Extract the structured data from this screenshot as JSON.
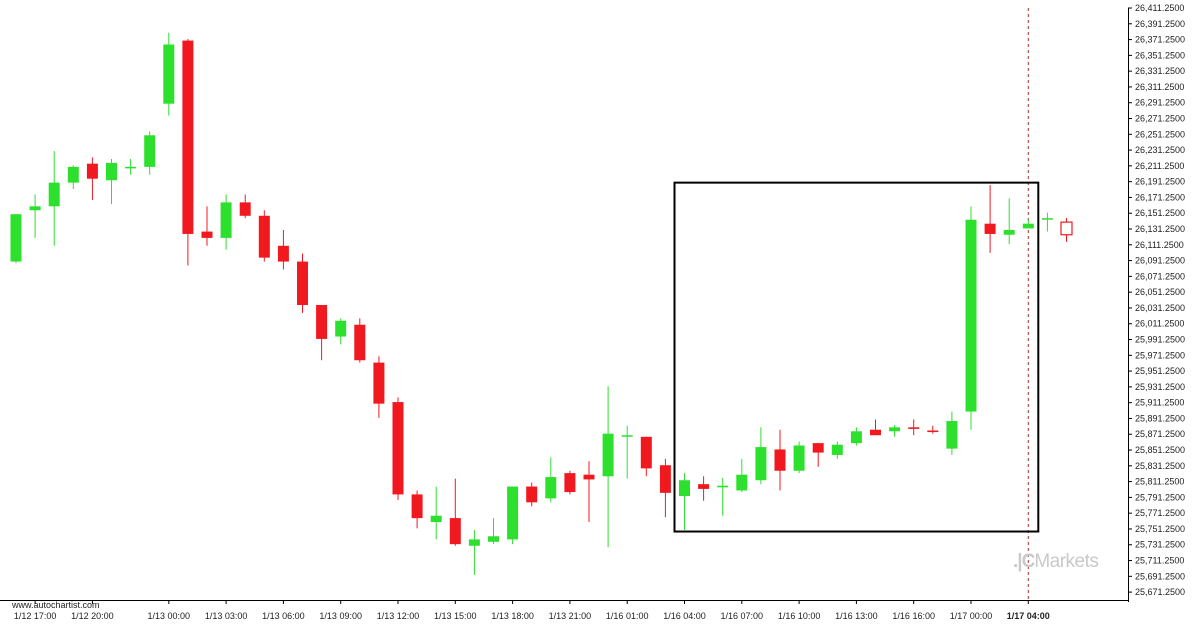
{
  "footer_text": "www.autochartist.com",
  "brand": {
    "name": "Markets"
  },
  "colors": {
    "up": "#2ee02e",
    "down": "#f0191f",
    "frame": "#000000",
    "dashed": "#b23030"
  },
  "chart_data": {
    "type": "candlestick",
    "title": "",
    "ylim": [
      25661.25,
      26411.25
    ],
    "y_ticks": [
      "26,411.2500",
      "26,391.2500",
      "26,371.2500",
      "26,351.2500",
      "26,331.2500",
      "26,311.2500",
      "26,291.2500",
      "26,271.2500",
      "26,251.2500",
      "26,231.2500",
      "26,211.2500",
      "26,191.2500",
      "26,171.2500",
      "26,151.2500",
      "26,131.2500",
      "26,111.2500",
      "26,091.2500",
      "26,071.2500",
      "26,051.2500",
      "26,031.2500",
      "26,011.2500",
      "25,991.2500",
      "25,971.2500",
      "25,951.2500",
      "25,931.2500",
      "25,911.2500",
      "25,891.2500",
      "25,871.2500",
      "25,851.2500",
      "25,831.2500",
      "25,811.2500",
      "25,791.2500",
      "25,771.2500",
      "25,751.2500",
      "25,731.2500",
      "25,711.2500",
      "25,691.2500",
      "25,671.2500"
    ],
    "x_ticks": [
      {
        "label": "1/12 17:00",
        "index": 1
      },
      {
        "label": "1/12 20:00",
        "index": 4
      },
      {
        "label": "1/13 00:00",
        "index": 8
      },
      {
        "label": "1/13 03:00",
        "index": 11
      },
      {
        "label": "1/13 06:00",
        "index": 14
      },
      {
        "label": "1/13 09:00",
        "index": 17
      },
      {
        "label": "1/13 12:00",
        "index": 20
      },
      {
        "label": "1/13 15:00",
        "index": 23
      },
      {
        "label": "1/13 18:00",
        "index": 26
      },
      {
        "label": "1/13 21:00",
        "index": 29
      },
      {
        "label": "1/16 01:00",
        "index": 32
      },
      {
        "label": "1/16 04:00",
        "index": 35
      },
      {
        "label": "1/16 07:00",
        "index": 38
      },
      {
        "label": "1/16 10:00",
        "index": 41
      },
      {
        "label": "1/16 13:00",
        "index": 44
      },
      {
        "label": "1/16 16:00",
        "index": 47
      },
      {
        "label": "1/17 00:00",
        "index": 50
      },
      {
        "label": "1/17 04:00",
        "index": 53,
        "bold": true
      }
    ],
    "candles": [
      {
        "o": 26090,
        "h": 26150,
        "l": 26088,
        "c": 26150
      },
      {
        "o": 26155,
        "h": 26175,
        "l": 26120,
        "c": 26160
      },
      {
        "o": 26160,
        "h": 26230,
        "l": 26110,
        "c": 26190
      },
      {
        "o": 26190,
        "h": 26212,
        "l": 26182,
        "c": 26210
      },
      {
        "o": 26214,
        "h": 26222,
        "l": 26168,
        "c": 26195
      },
      {
        "o": 26193,
        "h": 26220,
        "l": 26163,
        "c": 26215
      },
      {
        "o": 26210,
        "h": 26220,
        "l": 26200,
        "c": 26210
      },
      {
        "o": 26210,
        "h": 26255,
        "l": 26200,
        "c": 26250
      },
      {
        "o": 26290,
        "h": 26380,
        "l": 26275,
        "c": 26365
      },
      {
        "o": 26370,
        "h": 26372,
        "l": 26085,
        "c": 26125
      },
      {
        "o": 26128,
        "h": 26160,
        "l": 26110,
        "c": 26120
      },
      {
        "o": 26120,
        "h": 26175,
        "l": 26105,
        "c": 26165
      },
      {
        "o": 26165,
        "h": 26175,
        "l": 26145,
        "c": 26148
      },
      {
        "o": 26148,
        "h": 26155,
        "l": 26090,
        "c": 26095
      },
      {
        "o": 26110,
        "h": 26130,
        "l": 26080,
        "c": 26090
      },
      {
        "o": 26090,
        "h": 26100,
        "l": 26025,
        "c": 26035
      },
      {
        "o": 26035,
        "h": 26035,
        "l": 25965,
        "c": 25992
      },
      {
        "o": 25995,
        "h": 26018,
        "l": 25985,
        "c": 26015
      },
      {
        "o": 26010,
        "h": 26018,
        "l": 25962,
        "c": 25965
      },
      {
        "o": 25962,
        "h": 25970,
        "l": 25892,
        "c": 25910
      },
      {
        "o": 25912,
        "h": 25918,
        "l": 25788,
        "c": 25795
      },
      {
        "o": 25795,
        "h": 25800,
        "l": 25752,
        "c": 25765
      },
      {
        "o": 25760,
        "h": 25805,
        "l": 25738,
        "c": 25768
      },
      {
        "o": 25765,
        "h": 25815,
        "l": 25730,
        "c": 25732
      },
      {
        "o": 25730,
        "h": 25750,
        "l": 25693,
        "c": 25738
      },
      {
        "o": 25735,
        "h": 25765,
        "l": 25732,
        "c": 25742
      },
      {
        "o": 25738,
        "h": 25805,
        "l": 25732,
        "c": 25805
      },
      {
        "o": 25805,
        "h": 25810,
        "l": 25780,
        "c": 25785
      },
      {
        "o": 25790,
        "h": 25842,
        "l": 25785,
        "c": 25817
      },
      {
        "o": 25822,
        "h": 25825,
        "l": 25795,
        "c": 25798
      },
      {
        "o": 25820,
        "h": 25837,
        "l": 25760,
        "c": 25814
      },
      {
        "o": 25818,
        "h": 25932,
        "l": 25728,
        "c": 25872
      },
      {
        "o": 25870,
        "h": 25882,
        "l": 25815,
        "c": 25870
      },
      {
        "o": 25868,
        "h": 25868,
        "l": 25818,
        "c": 25828
      },
      {
        "o": 25832,
        "h": 25840,
        "l": 25766,
        "c": 25797
      },
      {
        "o": 25793,
        "h": 25822,
        "l": 25750,
        "c": 25813
      },
      {
        "o": 25808,
        "h": 25818,
        "l": 25787,
        "c": 25802
      },
      {
        "o": 25804,
        "h": 25816,
        "l": 25768,
        "c": 25806
      },
      {
        "o": 25800,
        "h": 25840,
        "l": 25798,
        "c": 25820
      },
      {
        "o": 25813,
        "h": 25880,
        "l": 25808,
        "c": 25855
      },
      {
        "o": 25852,
        "h": 25877,
        "l": 25800,
        "c": 25825
      },
      {
        "o": 25825,
        "h": 25862,
        "l": 25822,
        "c": 25857
      },
      {
        "o": 25860,
        "h": 25860,
        "l": 25830,
        "c": 25848
      },
      {
        "o": 25845,
        "h": 25862,
        "l": 25840,
        "c": 25858
      },
      {
        "o": 25860,
        "h": 25880,
        "l": 25857,
        "c": 25875
      },
      {
        "o": 25877,
        "h": 25890,
        "l": 25870,
        "c": 25870
      },
      {
        "o": 25875,
        "h": 25883,
        "l": 25868,
        "c": 25880
      },
      {
        "o": 25880,
        "h": 25890,
        "l": 25870,
        "c": 25878
      },
      {
        "o": 25876,
        "h": 25882,
        "l": 25872,
        "c": 25874
      },
      {
        "o": 25853,
        "h": 25900,
        "l": 25845,
        "c": 25888
      },
      {
        "o": 25900,
        "h": 26160,
        "l": 25877,
        "c": 26143
      },
      {
        "o": 26138,
        "h": 26187,
        "l": 26101,
        "c": 26125
      },
      {
        "o": 26124,
        "h": 26170,
        "l": 26112,
        "c": 26130
      },
      {
        "o": 26132,
        "h": 26143,
        "l": 26132,
        "c": 26138
      },
      {
        "o": 26145,
        "h": 26152,
        "l": 26128,
        "c": 26145
      },
      {
        "o": 26140,
        "h": 26145,
        "l": 26115,
        "c": 26124
      }
    ],
    "annotation_box": {
      "start_index": 35,
      "end_index": 53,
      "price_high": 26190,
      "price_low": 25748
    },
    "current_time_index": 53,
    "grid": false
  }
}
